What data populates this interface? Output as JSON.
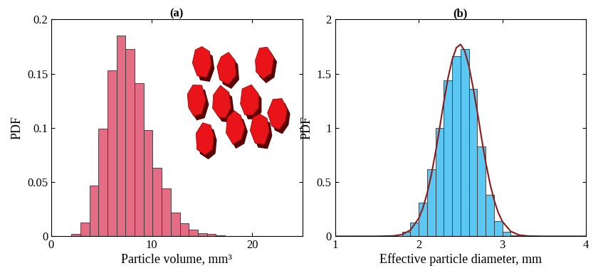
{
  "chart_data": [
    {
      "type": "histogram",
      "title": "(a)",
      "x_label": "Particle volume, mm³",
      "y_label": "PDF",
      "bins": [
        2.0,
        2.9,
        3.8,
        4.7,
        5.6,
        6.5,
        7.4,
        8.3,
        9.2,
        10.1,
        11.0,
        11.9,
        12.8,
        13.7,
        14.6,
        15.5,
        16.4,
        17.3,
        18.2,
        19.1
      ],
      "values": [
        0.002,
        0.013,
        0.047,
        0.099,
        0.153,
        0.185,
        0.173,
        0.141,
        0.098,
        0.063,
        0.044,
        0.022,
        0.012,
        0.006,
        0.003,
        0.002,
        0.001,
        0.0005,
        0.0003
      ],
      "color": "#e46c84",
      "xlim": [
        0,
        25
      ],
      "xticks": [
        0,
        10,
        20
      ],
      "ylim": [
        0,
        0.2
      ],
      "yticks": [
        0,
        0.05,
        0.1,
        0.15,
        0.2
      ]
    },
    {
      "type": "histogram",
      "title": "(b)",
      "x_label": "Effective particle diameter, mm",
      "y_label": "PDF",
      "bins": [
        1.7,
        1.8,
        1.9,
        2.0,
        2.1,
        2.2,
        2.3,
        2.4,
        2.5,
        2.6,
        2.7,
        2.8,
        2.9,
        3.0,
        3.1,
        3.2
      ],
      "values": [
        0.005,
        0.04,
        0.13,
        0.31,
        0.62,
        1.0,
        1.44,
        1.66,
        1.73,
        1.36,
        0.83,
        0.38,
        0.14,
        0.04,
        0.01
      ],
      "color": "#5ac8f2",
      "series": [
        {
          "type": "line",
          "color": "#8b1a1a",
          "x": [
            1.0,
            1.5,
            1.7,
            1.8,
            1.9,
            2.0,
            2.05,
            2.1,
            2.15,
            2.2,
            2.25,
            2.3,
            2.35,
            2.4,
            2.45,
            2.5,
            2.55,
            2.6,
            2.65,
            2.7,
            2.75,
            2.8,
            2.85,
            2.9,
            2.95,
            3.0,
            3.1,
            3.2,
            3.3,
            3.5,
            4.0
          ],
          "values": [
            0,
            0.0001,
            0.004,
            0.016,
            0.057,
            0.165,
            0.262,
            0.395,
            0.565,
            0.772,
            1.0,
            1.24,
            1.46,
            1.63,
            1.74,
            1.77,
            1.71,
            1.57,
            1.37,
            1.15,
            0.908,
            0.685,
            0.492,
            0.336,
            0.219,
            0.136,
            0.045,
            0.012,
            0.003,
            0,
            0
          ]
        }
      ],
      "xlim": [
        1,
        4
      ],
      "xticks": [
        1,
        2,
        3,
        4
      ],
      "ylim": [
        0,
        2
      ],
      "yticks": [
        0,
        0.5,
        1,
        1.5,
        2
      ]
    }
  ]
}
